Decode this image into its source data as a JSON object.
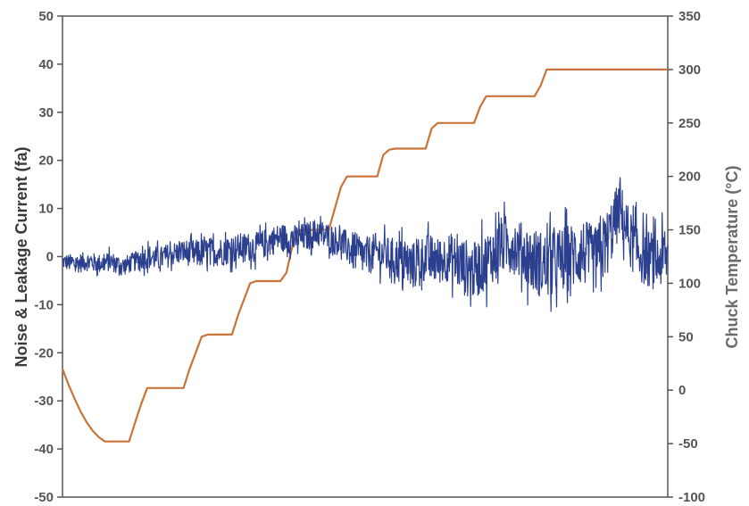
{
  "chart_data": {
    "type": "line",
    "title": "",
    "xlabel": "",
    "ylabel": "Noise & Leakage Current (fa)",
    "y2label": "Chuck Temperature (°C)",
    "ylim": [
      -50,
      50
    ],
    "y2lim": [
      -100,
      350
    ],
    "yticks": [
      "50",
      "40",
      "30",
      "20",
      "10",
      "0",
      "-10",
      "-20",
      "-30",
      "-40",
      "-50"
    ],
    "y2ticks": [
      "350",
      "300",
      "250",
      "200",
      "150",
      "100",
      "50",
      "0",
      "-50",
      "-100"
    ],
    "grid": false,
    "colors": {
      "current": "#2b3f8f",
      "temperature": "#c8743a",
      "axis": "#555555"
    },
    "series": [
      {
        "axis": "left",
        "x": [
          0,
          2,
          4,
          6,
          8,
          10,
          12,
          14,
          16,
          18,
          20,
          22,
          24,
          26,
          28,
          30,
          32,
          34,
          36,
          38,
          40,
          42,
          44,
          46,
          48,
          50,
          52,
          54,
          56,
          58,
          60,
          62,
          64,
          66,
          68,
          70,
          72,
          74,
          76,
          78,
          80,
          82,
          84,
          86,
          88,
          90,
          92,
          94,
          96,
          98,
          100
        ],
        "values": [
          -1,
          -1.5,
          -1,
          -1.5,
          -1,
          -2,
          -1,
          0,
          -0.5,
          0.5,
          1,
          0.5,
          1,
          1,
          1.5,
          2,
          2,
          3,
          4,
          3.5,
          4,
          5,
          4,
          3,
          1,
          0,
          1,
          0,
          -1,
          -2,
          0,
          -1,
          0,
          -2,
          -3,
          -1,
          2,
          3,
          1,
          -1,
          -2,
          -1,
          0,
          1,
          -1,
          3,
          10,
          3,
          0,
          -1,
          0
        ],
        "noise": [
          1.5,
          2,
          2,
          2,
          2,
          2,
          2,
          2.5,
          2.5,
          2.5,
          2.5,
          3,
          3,
          3,
          3,
          3,
          3,
          3,
          3,
          3,
          3,
          3,
          3,
          3,
          4,
          4,
          4,
          4,
          5,
          5,
          5,
          5,
          5,
          6,
          6,
          6,
          6,
          6,
          6,
          7,
          7,
          7,
          7,
          7,
          7,
          7,
          6,
          6,
          6,
          6,
          6
        ]
      },
      {
        "axis": "right",
        "x": [
          0,
          1,
          2,
          3,
          4,
          5,
          6,
          7,
          8,
          9,
          10,
          11,
          12,
          13,
          14,
          15,
          16,
          17,
          18,
          19,
          20,
          21,
          22,
          23,
          24,
          25,
          26,
          27,
          28,
          29,
          30,
          31,
          32,
          33,
          34,
          35,
          36,
          37,
          38,
          39,
          40,
          41,
          42,
          43,
          44,
          45,
          46,
          47,
          48,
          49,
          50,
          51,
          52,
          53,
          54,
          55,
          56,
          57,
          58,
          59,
          60,
          61,
          62,
          63,
          64,
          65,
          66,
          67,
          68,
          69,
          70,
          71,
          72,
          73,
          74,
          75,
          76,
          77,
          78,
          79,
          80,
          81,
          82,
          83,
          84,
          85,
          86,
          87,
          88,
          89,
          90,
          91,
          92,
          93,
          94,
          95,
          96,
          97,
          98,
          99,
          100
        ],
        "values": [
          20,
          5,
          -8,
          -20,
          -30,
          -38,
          -44,
          -48,
          -48,
          -48,
          -48,
          -48,
          -30,
          -13,
          2,
          2,
          2,
          2,
          2,
          2,
          2,
          20,
          35,
          50,
          52,
          52,
          52,
          52,
          52,
          70,
          85,
          100,
          102,
          102,
          102,
          102,
          102,
          110,
          135,
          150,
          150,
          150,
          150,
          150,
          150,
          170,
          190,
          200,
          200,
          200,
          200,
          200,
          200,
          220,
          225,
          226,
          226,
          226,
          226,
          226,
          226,
          245,
          250,
          250,
          250,
          250,
          250,
          250,
          250,
          265,
          275,
          275,
          275,
          275,
          275,
          275,
          275,
          275,
          275,
          285,
          300,
          300,
          300,
          300,
          300,
          300,
          300,
          300,
          300,
          300,
          300,
          300,
          300,
          300,
          300,
          300,
          300,
          300,
          300,
          300,
          300
        ]
      }
    ]
  }
}
